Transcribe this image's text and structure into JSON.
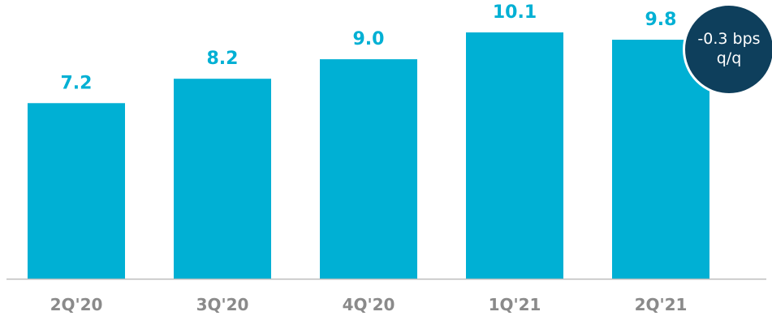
{
  "chart_data": {
    "type": "bar",
    "categories": [
      "2Q'20",
      "3Q'20",
      "4Q'20",
      "1Q'21",
      "2Q'21"
    ],
    "values": [
      7.2,
      8.2,
      9.0,
      10.1,
      9.8
    ],
    "value_labels": [
      "7.2",
      "8.2",
      "9.0",
      "10.1",
      "9.8"
    ],
    "title": "",
    "xlabel": "",
    "ylabel": "",
    "ylim": [
      0,
      10.1
    ],
    "grid": false,
    "legend": "none"
  },
  "badge": {
    "line1": "-0.3 bps",
    "line2": "q/q"
  },
  "colors": {
    "bar": "#00b0d4",
    "value_label": "#00b0d4",
    "tick_label": "#8a8a8a",
    "axis": "#bdbdbd",
    "badge_bg": "#0e3f5c"
  }
}
